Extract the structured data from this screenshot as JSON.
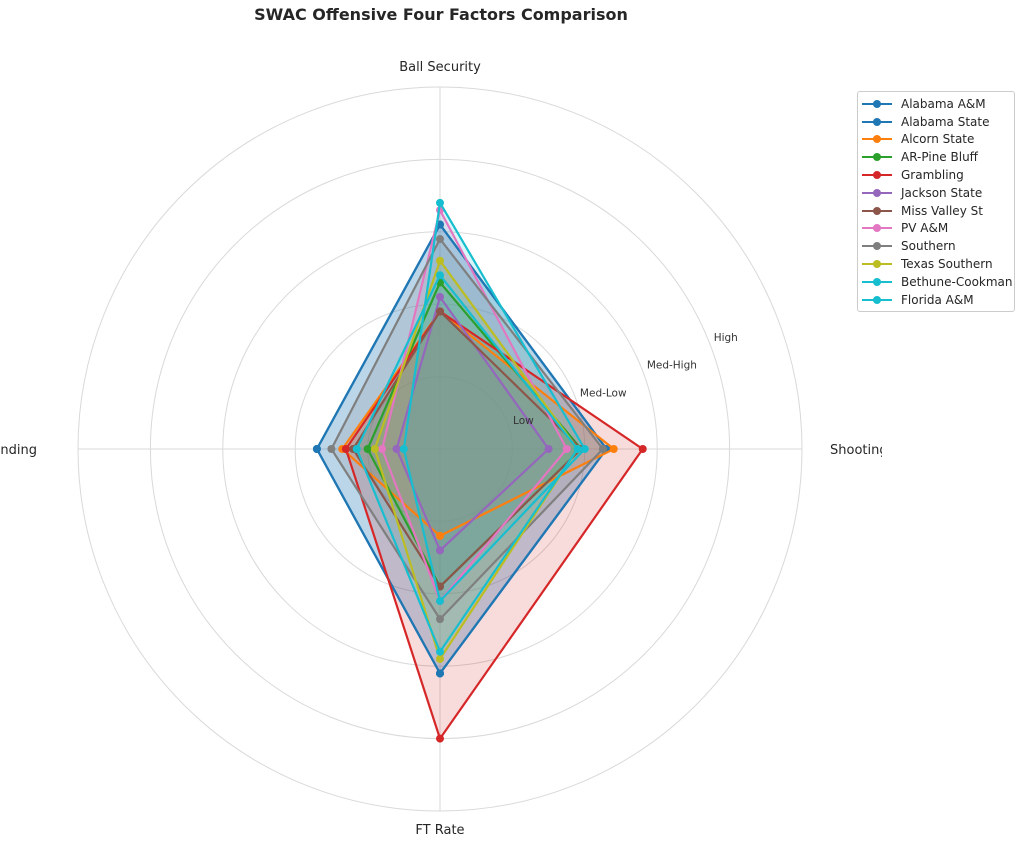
{
  "chart_data": {
    "type": "radar",
    "title": "SWAC Offensive Four Factors Comparison",
    "axes": [
      "Shooting",
      "Ball Security",
      "Off Rebounding",
      "FT Rate"
    ],
    "ring_labels": [
      "Low",
      "Med-Low",
      "Med-High",
      "High"
    ],
    "range": [
      0,
      5
    ],
    "grid": true,
    "legend_position": "upper-right-outside",
    "series": [
      {
        "name": "Alabama A&M",
        "color": "#1f77b4",
        "values": [
          2.3,
          3.1,
          1.7,
          3.1
        ]
      },
      {
        "name": "Alabama State",
        "color": "#1f77b4",
        "values": [
          2.3,
          3.1,
          1.7,
          3.1
        ]
      },
      {
        "name": "Alcorn State",
        "color": "#ff7f0e",
        "values": [
          2.4,
          1.9,
          1.35,
          1.2
        ]
      },
      {
        "name": "AR-Pine Bluff",
        "color": "#2ca02c",
        "values": [
          1.95,
          2.3,
          1.0,
          1.9
        ]
      },
      {
        "name": "Grambling",
        "color": "#d62728",
        "values": [
          2.8,
          1.9,
          1.3,
          4.0
        ]
      },
      {
        "name": "Jackson State",
        "color": "#9467bd",
        "values": [
          1.5,
          2.1,
          0.6,
          1.4
        ]
      },
      {
        "name": "Miss Valley St",
        "color": "#8c564b",
        "values": [
          1.95,
          1.9,
          1.2,
          1.9
        ]
      },
      {
        "name": "PV A&M",
        "color": "#e377c2",
        "values": [
          1.75,
          3.3,
          0.8,
          2.1
        ]
      },
      {
        "name": "Southern",
        "color": "#7f7f7f",
        "values": [
          2.25,
          2.9,
          1.5,
          2.35
        ]
      },
      {
        "name": "Texas Southern",
        "color": "#bcbd22",
        "values": [
          1.9,
          2.6,
          0.9,
          2.9
        ]
      },
      {
        "name": "Bethune-Cookman",
        "color": "#17becf",
        "values": [
          1.9,
          2.4,
          1.15,
          2.8
        ]
      },
      {
        "name": "Florida A&M",
        "color": "#17becf",
        "values": [
          2.0,
          3.4,
          0.5,
          2.1
        ]
      }
    ]
  }
}
